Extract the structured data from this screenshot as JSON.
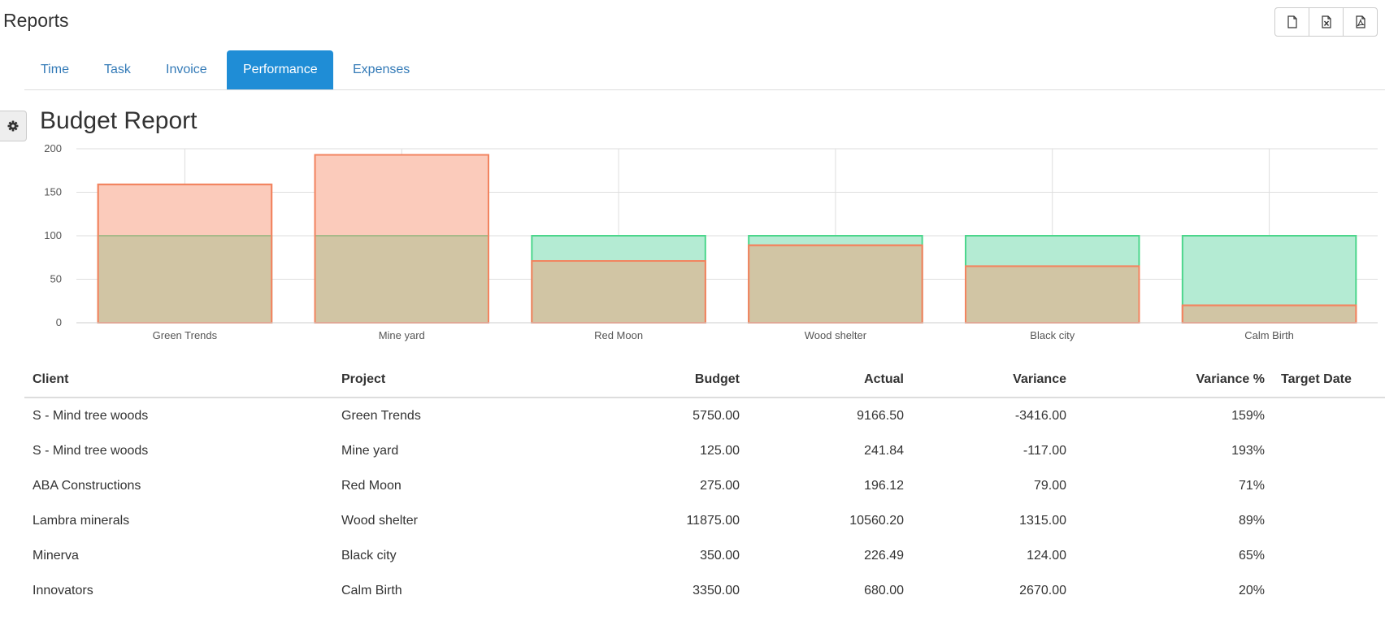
{
  "header": {
    "title": "Reports"
  },
  "export_buttons": [
    {
      "icon": "file-icon"
    },
    {
      "icon": "excel-file-icon"
    },
    {
      "icon": "pdf-file-icon"
    }
  ],
  "tabs": [
    {
      "label": "Time"
    },
    {
      "label": "Task"
    },
    {
      "label": "Invoice"
    },
    {
      "label": "Performance",
      "active": true
    },
    {
      "label": "Expenses"
    }
  ],
  "report": {
    "title": "Budget Report"
  },
  "colors": {
    "accent": "#1f8dd6",
    "budget_fill": "#b4ebd3",
    "budget_stroke": "#4cd68c",
    "actual_fill": "#fbcbbb",
    "actual_stroke": "#f28460",
    "overlap_fill": "#d1c5a4"
  },
  "chart_data": {
    "type": "bar",
    "categories": [
      "Green Trends",
      "Mine yard",
      "Red Moon",
      "Wood shelter",
      "Black city",
      "Calm Birth"
    ],
    "series": [
      {
        "key": "budget",
        "values": [
          100,
          100,
          100,
          100,
          100,
          100
        ]
      },
      {
        "key": "actual",
        "values": [
          159,
          193,
          71,
          89,
          65,
          20
        ]
      }
    ],
    "yticks": [
      0,
      50,
      100,
      150,
      200
    ],
    "ylim": [
      0,
      200
    ],
    "grid": true,
    "legend": "none"
  },
  "table": {
    "columns": [
      "Client",
      "Project",
      "Budget",
      "Actual",
      "Variance",
      "Variance %",
      "Target Date"
    ],
    "rows": [
      [
        "S - Mind tree woods",
        "Green Trends",
        "5750.00",
        "9166.50",
        "-3416.00",
        "159%",
        ""
      ],
      [
        "S - Mind tree woods",
        "Mine yard",
        "125.00",
        "241.84",
        "-117.00",
        "193%",
        ""
      ],
      [
        "ABA Constructions",
        "Red Moon",
        "275.00",
        "196.12",
        "79.00",
        "71%",
        ""
      ],
      [
        "Lambra minerals",
        "Wood shelter",
        "11875.00",
        "10560.20",
        "1315.00",
        "89%",
        ""
      ],
      [
        "Minerva",
        "Black city",
        "350.00",
        "226.49",
        "124.00",
        "65%",
        ""
      ],
      [
        "Innovators",
        "Calm Birth",
        "3350.00",
        "680.00",
        "2670.00",
        "20%",
        ""
      ]
    ]
  }
}
